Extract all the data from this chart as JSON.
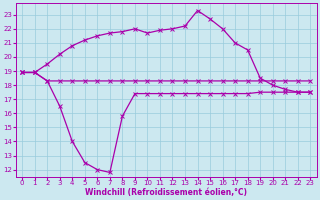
{
  "xlabel": "Windchill (Refroidissement éolien,°C)",
  "background_color": "#cce8f0",
  "line_color": "#aa00aa",
  "grid_color": "#99ccdd",
  "xlim": [
    -0.5,
    23.5
  ],
  "ylim": [
    11.5,
    23.8
  ],
  "yticks": [
    12,
    13,
    14,
    15,
    16,
    17,
    18,
    19,
    20,
    21,
    22,
    23
  ],
  "xticks": [
    0,
    1,
    2,
    3,
    4,
    5,
    6,
    7,
    8,
    9,
    10,
    11,
    12,
    13,
    14,
    15,
    16,
    17,
    18,
    19,
    20,
    21,
    22,
    23
  ],
  "line_flat_x": [
    0,
    1,
    2,
    3,
    4,
    5,
    6,
    7,
    8,
    9,
    10,
    11,
    12,
    13,
    14,
    15,
    16,
    17,
    18,
    19,
    20,
    21,
    22,
    23
  ],
  "line_flat_y": [
    18.9,
    18.9,
    18.3,
    18.3,
    18.3,
    18.3,
    18.3,
    18.3,
    18.3,
    18.3,
    18.3,
    18.3,
    18.3,
    18.3,
    18.3,
    18.3,
    18.3,
    18.3,
    18.3,
    18.3,
    18.3,
    18.3,
    18.3,
    18.3
  ],
  "line_big_x": [
    0,
    1,
    2,
    3,
    4,
    5,
    6,
    7,
    8,
    9,
    10,
    11,
    12,
    13,
    14,
    15,
    16,
    17,
    18,
    19,
    20,
    21,
    22,
    23
  ],
  "line_big_y": [
    18.9,
    18.9,
    19.5,
    20.2,
    20.8,
    21.2,
    21.5,
    21.7,
    21.8,
    22.0,
    21.7,
    21.9,
    22.0,
    22.2,
    23.3,
    22.7,
    22.0,
    21.0,
    20.5,
    18.5,
    18.0,
    17.7,
    17.5,
    17.5
  ],
  "line_dip_x": [
    0,
    1,
    2,
    3,
    4,
    5,
    6,
    7,
    8,
    9,
    10,
    11,
    12,
    13,
    14,
    15,
    16,
    17,
    18,
    19,
    20,
    21,
    22,
    23
  ],
  "line_dip_y": [
    18.9,
    18.9,
    18.3,
    16.5,
    14.0,
    12.5,
    12.0,
    11.8,
    15.8,
    17.4,
    17.4,
    17.4,
    17.4,
    17.4,
    17.4,
    17.4,
    17.4,
    17.4,
    17.4,
    17.5,
    17.5,
    17.5,
    17.5,
    17.5
  ],
  "axis_fontsize": 5.5,
  "tick_fontsize": 5.0
}
